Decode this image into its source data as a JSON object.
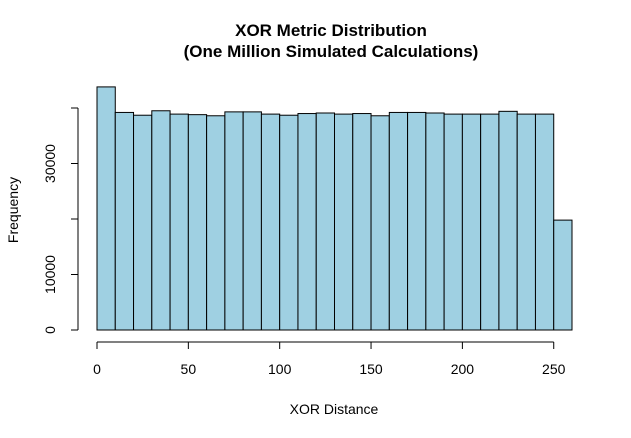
{
  "chart_data": {
    "type": "bar",
    "title": "XOR Metric Distribution",
    "subtitle": "(One Million Simulated Calculations)",
    "xlabel": "XOR Distance",
    "ylabel": "Frequency",
    "xlim": [
      0,
      260
    ],
    "ylim": [
      0,
      45000
    ],
    "x_ticks": [
      0,
      50,
      100,
      150,
      200,
      250
    ],
    "y_ticks": [
      0,
      10000,
      30000
    ],
    "y_tick_marks": [
      0,
      10000,
      20000,
      30000,
      40000
    ],
    "bin_width": 10,
    "bins": [
      0,
      10,
      20,
      30,
      40,
      50,
      60,
      70,
      80,
      90,
      100,
      110,
      120,
      130,
      140,
      150,
      160,
      170,
      180,
      190,
      200,
      210,
      220,
      230,
      240,
      250
    ],
    "values": [
      43800,
      39200,
      38700,
      39500,
      38900,
      38800,
      38600,
      39300,
      39300,
      38900,
      38700,
      39000,
      39100,
      38900,
      39000,
      38600,
      39200,
      39200,
      39100,
      38900,
      38900,
      38900,
      39400,
      38900,
      38900,
      19800
    ],
    "bar_color": "#9fd0e2",
    "grid": false
  }
}
